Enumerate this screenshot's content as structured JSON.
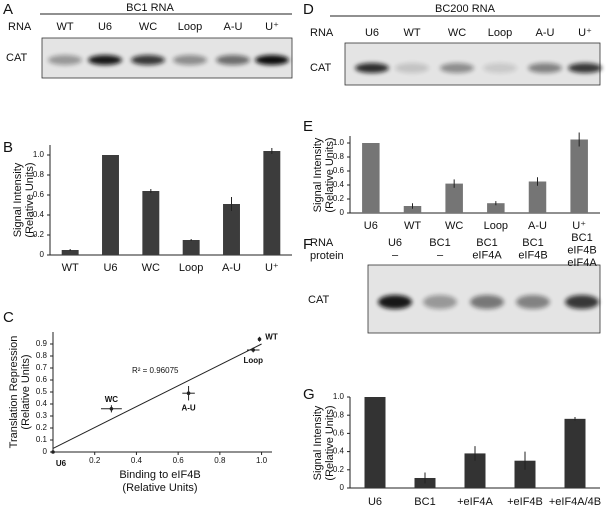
{
  "gels": [
    {
      "letter": "A",
      "title": "BC1 RNA",
      "row_label": "RNA",
      "lanes": [
        "WT",
        "U6",
        "WC",
        "Loop",
        "A-U",
        "U⁺"
      ],
      "band_label": "CAT"
    },
    {
      "letter": "D",
      "title": "BC200 RNA",
      "row_label": "RNA",
      "lanes": [
        "U6",
        "WT",
        "WC",
        "Loop",
        "A-U",
        "U⁺"
      ],
      "band_label": "CAT"
    },
    {
      "letter": "F",
      "row_labels": [
        "RNA",
        "protein"
      ],
      "lanes": [
        [
          "U6",
          "–"
        ],
        [
          "BC1",
          "–"
        ],
        [
          "BC1",
          "eIF4A"
        ],
        [
          "BC1",
          "eIF4B"
        ],
        [
          "BC1",
          "eIF4B",
          "eIF4A"
        ]
      ],
      "band_label": "CAT"
    }
  ],
  "chart_data": [
    {
      "type": "bar",
      "letter": "B",
      "y_label": [
        "Signal Intensity",
        "(Relative Units)"
      ],
      "categories": [
        "WT",
        "U6",
        "WC",
        "Loop",
        "A-U",
        "U⁺"
      ],
      "values": [
        0.05,
        1.0,
        0.64,
        0.15,
        0.51,
        1.04
      ],
      "errors": [
        0.01,
        0,
        0.02,
        0.01,
        0.07,
        0.03
      ],
      "color": "#3c3c3c",
      "ylim": [
        0,
        1.1
      ],
      "yticks": [
        0,
        0.2,
        0.4,
        0.6,
        0.8,
        {
          "value": 1,
          "label": "1.0"
        }
      ]
    },
    {
      "type": "scatter",
      "letter": "C",
      "y_label": [
        "Translation Repression",
        "(Relative Units)"
      ],
      "x_label": [
        "Binding to eIF4B",
        "(Relative Units)"
      ],
      "annotation": "R² = 0.96075",
      "labels": [
        "U6",
        "WC",
        "A-U",
        "Loop",
        "WT"
      ],
      "x": [
        0,
        0.28,
        0.65,
        0.96,
        0.99
      ],
      "y": [
        0,
        0.36,
        0.49,
        0.85,
        0.94
      ],
      "x_errors": [
        0,
        0.05,
        0.03,
        0.03,
        0
      ],
      "y_errors": [
        0,
        0.03,
        0.06,
        0.02,
        0.02
      ],
      "trendline": {
        "x": [
          0,
          1
        ],
        "y": [
          0.03,
          0.9
        ]
      },
      "color": "#222222",
      "xlim": [
        0,
        1.05
      ],
      "ylim": [
        0,
        1.0
      ],
      "xticks": [
        0.2,
        0.4,
        0.6,
        0.8,
        {
          "value": 1,
          "label": "1.0"
        }
      ],
      "yticks": [
        0,
        0.1,
        0.2,
        0.3,
        0.4,
        0.5,
        0.6,
        0.7,
        0.8,
        0.9
      ]
    },
    {
      "type": "bar",
      "letter": "E",
      "y_label": [
        "Signal Intensity",
        "(Relative Units)"
      ],
      "categories": [
        "U6",
        "WT",
        "WC",
        "Loop",
        "A-U",
        "U⁺"
      ],
      "values": [
        1.0,
        0.1,
        0.42,
        0.14,
        0.45,
        1.05
      ],
      "errors": [
        0,
        0.04,
        0.06,
        0.03,
        0.06,
        0.1
      ],
      "color": "#757575",
      "ylim": [
        0,
        1.1
      ],
      "yticks": [
        0,
        0.2,
        0.4,
        0.6,
        0.8,
        {
          "value": 1,
          "label": "1.0"
        }
      ]
    },
    {
      "type": "bar",
      "letter": "G",
      "y_label": [
        "Signal Intensity",
        "(Relative Units)"
      ],
      "categories": [
        "U6",
        "BC1",
        "+eIF4A",
        "+eIF4B",
        "+eIF4A/4B"
      ],
      "values": [
        1.0,
        0.11,
        0.38,
        0.3,
        0.76
      ],
      "errors": [
        0,
        0.06,
        0.08,
        0.1,
        0.02
      ],
      "color": "#333333",
      "ylim": [
        0,
        1.0
      ],
      "yticks": [
        0,
        0.2,
        0.4,
        0.6,
        0.8,
        {
          "value": 1,
          "label": "1.0"
        }
      ]
    }
  ]
}
